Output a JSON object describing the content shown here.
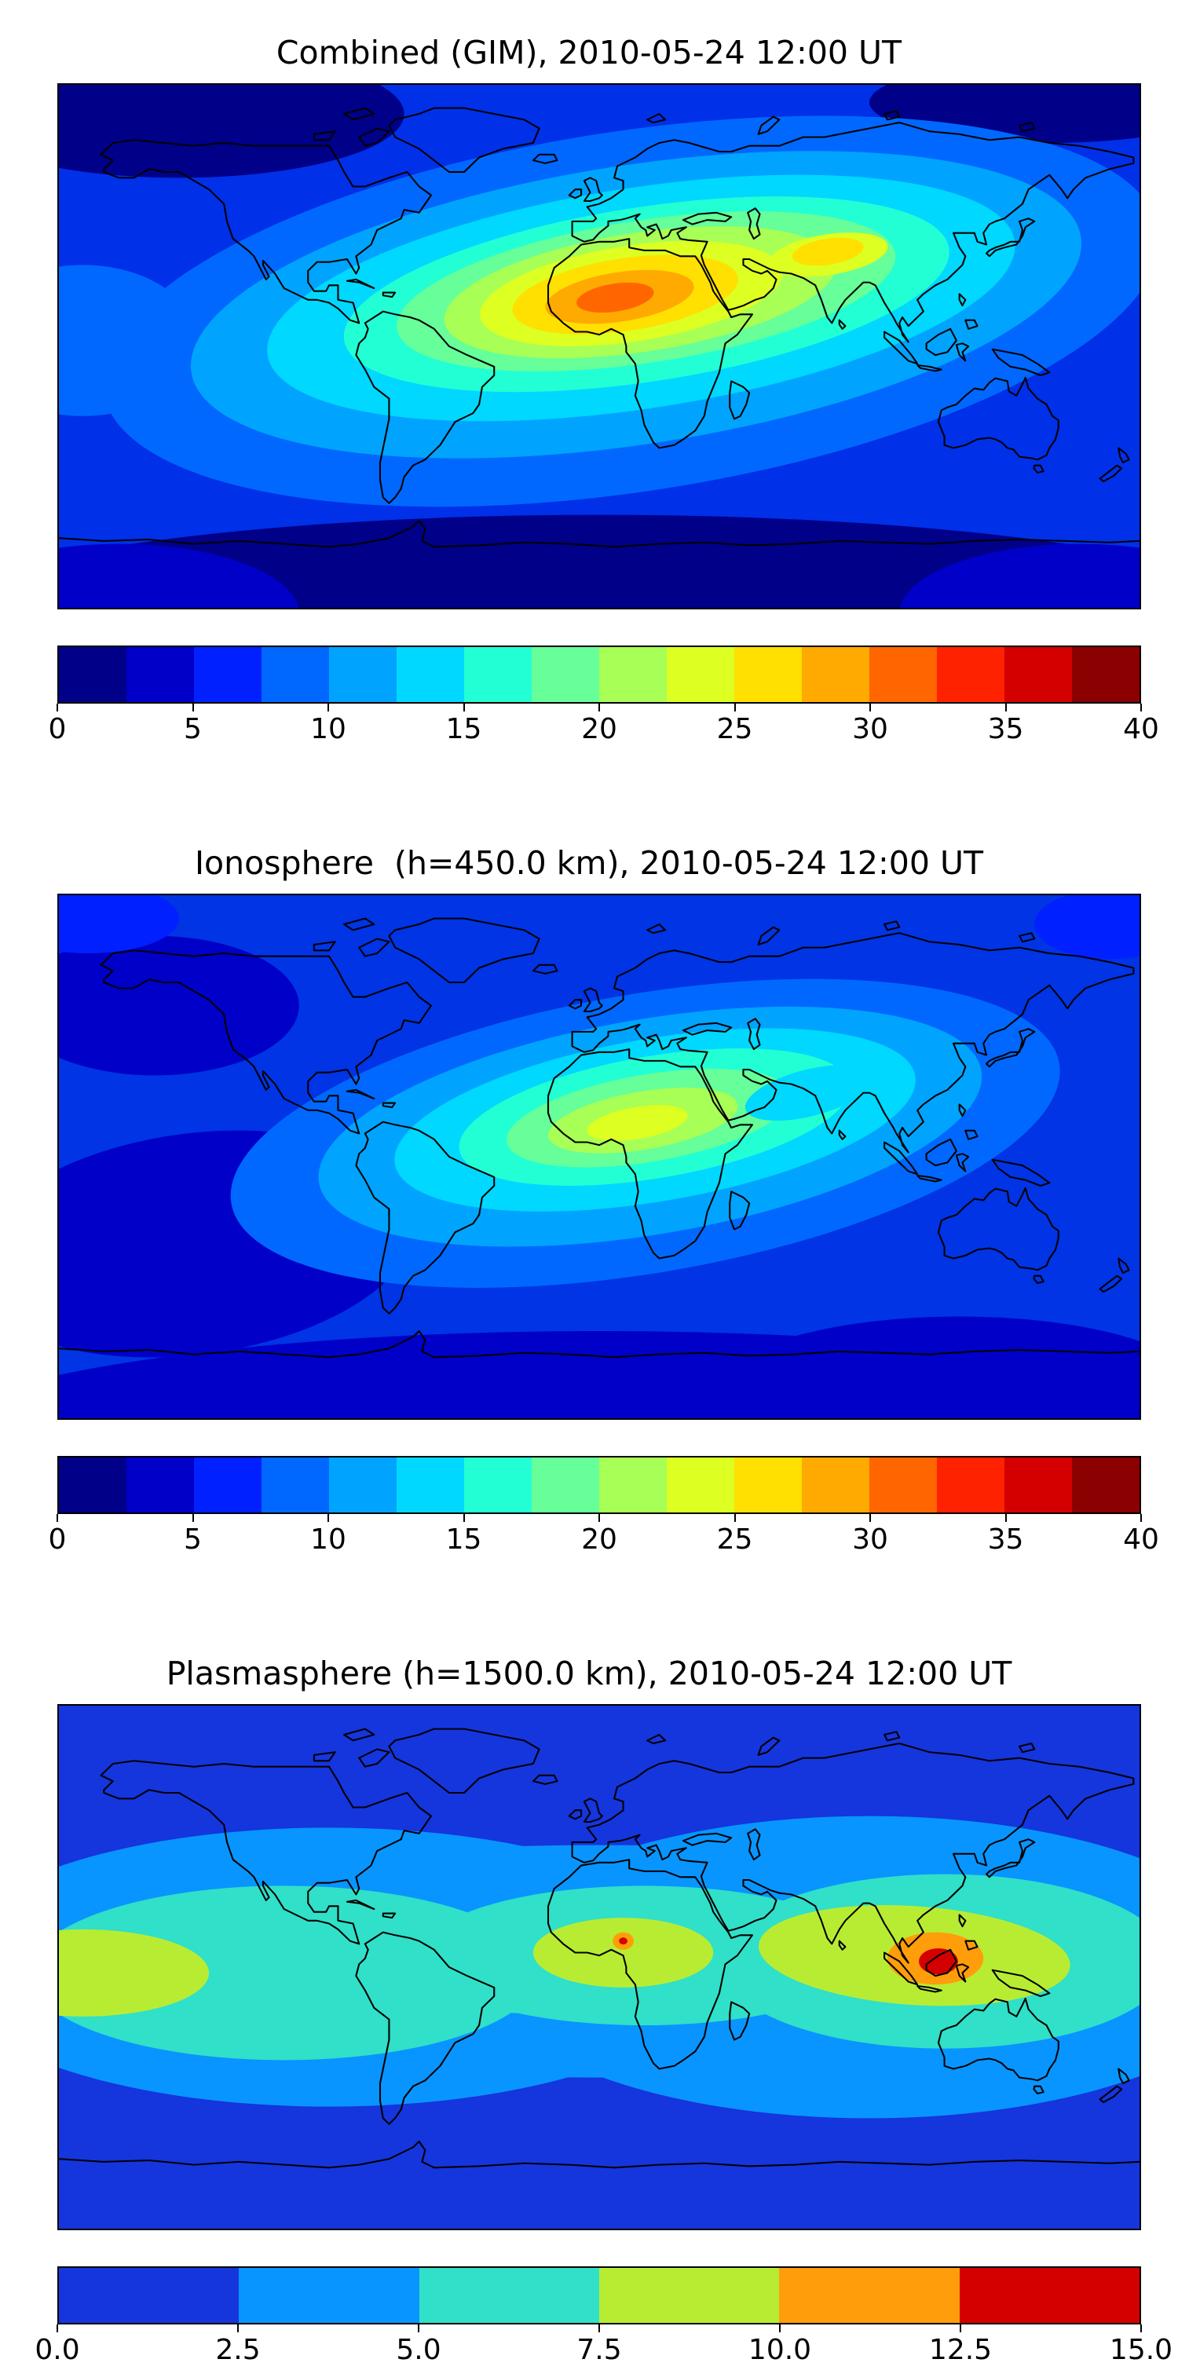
{
  "figure": {
    "background": "#ffffff",
    "text_color": "#000000"
  },
  "panels": [
    {
      "title": "Combined (GIM), 2010-05-24 12:00 UT",
      "colorbar": {
        "min": 0,
        "max": 40,
        "ticks": [
          "0",
          "5",
          "10",
          "15",
          "20",
          "25",
          "30",
          "35",
          "40"
        ],
        "colors": [
          "#000089",
          "#0000c8",
          "#0020ff",
          "#0068ff",
          "#00a4ff",
          "#00d8ff",
          "#22ffd4",
          "#66ff99",
          "#a8ff55",
          "#ddff22",
          "#ffe000",
          "#ffaa00",
          "#ff6600",
          "#ff2200",
          "#d40000",
          "#8b0000"
        ]
      }
    },
    {
      "title": "Ionosphere  (h=450.0 km), 2010-05-24 12:00 UT",
      "colorbar": {
        "min": 0,
        "max": 40,
        "ticks": [
          "0",
          "5",
          "10",
          "15",
          "20",
          "25",
          "30",
          "35",
          "40"
        ],
        "colors": [
          "#000089",
          "#0000c8",
          "#0020ff",
          "#0068ff",
          "#00a4ff",
          "#00d8ff",
          "#22ffd4",
          "#66ff99",
          "#a8ff55",
          "#ddff22",
          "#ffe000",
          "#ffaa00",
          "#ff6600",
          "#ff2200",
          "#d40000",
          "#8b0000"
        ]
      }
    },
    {
      "title": "Plasmasphere (h=1500.0 km), 2010-05-24 12:00 UT",
      "colorbar": {
        "min": 0,
        "max": 15,
        "ticks": [
          "0.0",
          "2.5",
          "5.0",
          "7.5",
          "10.0",
          "12.5",
          "15.0"
        ],
        "colors": [
          "#1535dd",
          "#0895ff",
          "#30e0c8",
          "#b8ec33",
          "#ff9d0a",
          "#d40000"
        ]
      }
    }
  ],
  "chart_data": [
    {
      "type": "heatmap",
      "subtype": "filled-contour world map (equirectangular, lon -180..180, lat -90..90)",
      "title": "Combined (GIM), 2010-05-24 12:00 UT",
      "colormap": "jet (discrete bands)",
      "value_range": [
        0,
        40
      ],
      "contour_interval": 2.5,
      "colorbar_ticks": [
        0,
        5,
        10,
        15,
        20,
        25,
        30,
        35,
        40
      ],
      "features": [
        {
          "region": "West Africa / Sahara, lon ~0-20E lat ~12-22N",
          "value": "maximum, ~30-32.5 (orange core)"
        },
        {
          "region": "elongated daytime band from mid-Atlantic across Africa, Arabia to India/SE Asia",
          "value": "15-30 (cyan-green-yellow)"
        },
        {
          "region": "India secondary enhancement lon ~70-90E lat ~20N",
          "value": "~25"
        },
        {
          "region": "north Pacific / Alaska and high northern latitudes",
          "value": "0-5 (dark blue)"
        },
        {
          "region": "southern ocean / Antarctic band",
          "value": "0-5 (dark blue)"
        },
        {
          "region": "central Pacific and mid oceans",
          "value": "5-12.5 (blue)"
        }
      ]
    },
    {
      "type": "heatmap",
      "subtype": "filled-contour world map (equirectangular, lon -180..180, lat -90..90)",
      "title": "Ionosphere  (h=450.0 km), 2010-05-24 12:00 UT",
      "colormap": "jet (discrete bands)",
      "value_range": [
        0,
        40
      ],
      "contour_interval": 2.5,
      "colorbar_ticks": [
        0,
        5,
        10,
        15,
        20,
        25,
        30,
        35,
        40
      ],
      "features": [
        {
          "region": "central/West Africa lon ~5-25E lat ~0-15N",
          "value": "maximum, ~20-22.5 (green-yellow core)"
        },
        {
          "region": "surrounding band over Africa, Middle East toward India",
          "value": "10-17.5 (cyan/light blue)"
        },
        {
          "region": "south Pacific lon ~-180..-90 lat ~-10..-50",
          "value": "0-5 (dark blue patch)"
        },
        {
          "region": "north Pacific lon ~-180..-120 lat ~15-45",
          "value": "0-5 (dark blue patch)"
        },
        {
          "region": "southern high-latitude band",
          "value": "0-5 (dark blue)"
        },
        {
          "region": "remaining oceans and continents",
          "value": "5-10 (blue)"
        }
      ]
    },
    {
      "type": "heatmap",
      "subtype": "filled-contour world map (equirectangular, lon -180..180, lat -90..90)",
      "title": "Plasmasphere (h=1500.0 km), 2010-05-24 12:00 UT",
      "colormap": "jet (6 discrete bands)",
      "value_range": [
        0,
        15
      ],
      "contour_interval": 2.5,
      "colorbar_ticks": [
        0.0,
        2.5,
        5.0,
        7.5,
        10.0,
        12.5,
        15.0
      ],
      "features": [
        {
          "region": "high latitudes north and south (|lat| > ~45)",
          "value": "0-2.5 (blue)"
        },
        {
          "region": "mid-latitude wavy band",
          "value": "2.5-5 (light blue)"
        },
        {
          "region": "low-latitude band around magnetic equator",
          "value": "5-7.5 (turquoise)"
        },
        {
          "region": "equatorial blobs: far-west Pacific edge, Africa, South/SE Asia",
          "value": "7.5-10 (yellow-green)"
        },
        {
          "region": "SE Asia / Indonesia lon ~95-125E",
          "value": "10-12.5 (orange) with 12.5-15 red core near Borneo"
        },
        {
          "region": "West Africa dot lon ~7E lat ~9N",
          "value": "~10-12.5 (small orange-red spot)"
        }
      ]
    }
  ]
}
